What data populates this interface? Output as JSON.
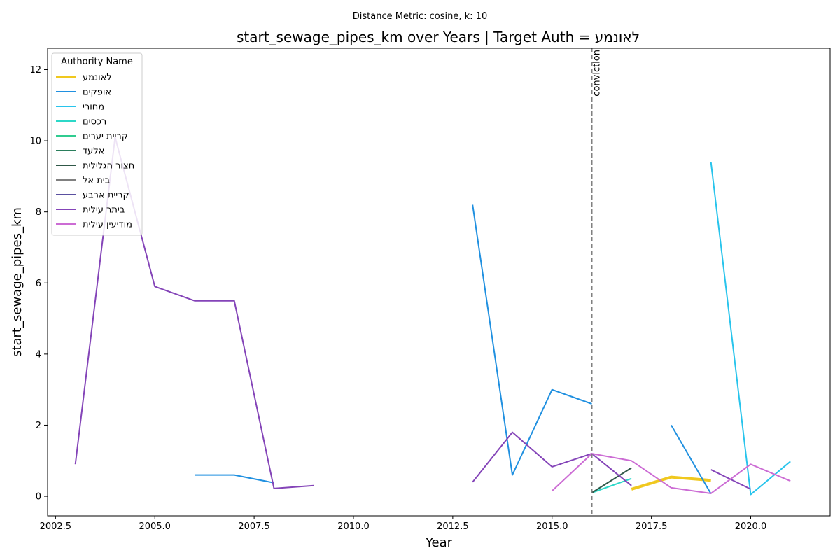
{
  "chart_data": {
    "type": "line",
    "subtitle": "Distance Metric: cosine, k: 10",
    "title": "start_sewage_pipes_km over Years | Target Auth = לאונמע",
    "xlabel": "Year",
    "ylabel": "start_sewage_pipes_km",
    "xlim": [
      2002.3,
      2022.0
    ],
    "ylim": [
      -0.55,
      12.6
    ],
    "x_ticks": [
      2002.5,
      2005.0,
      2007.5,
      2010.0,
      2012.5,
      2015.0,
      2017.5,
      2020.0
    ],
    "x_tick_labels": [
      "2002.5",
      "2005.0",
      "2007.5",
      "2010.0",
      "2012.5",
      "2015.0",
      "2017.5",
      "2020.0"
    ],
    "y_ticks": [
      0,
      2,
      4,
      6,
      8,
      10,
      12
    ],
    "y_tick_labels": [
      "0",
      "2",
      "4",
      "6",
      "8",
      "10",
      "12"
    ],
    "grid": false,
    "legend": {
      "title": "Authority Name",
      "placement": "top-left"
    },
    "annotations": [
      {
        "x": 2016,
        "label": "conviction",
        "style": "dashed-vertical-line",
        "color": "#808080"
      }
    ],
    "series": [
      {
        "name": "לאונמע",
        "color": "#f0c81e",
        "width": 4,
        "x": [
          2017,
          2018,
          2019
        ],
        "y": [
          0.2,
          0.54,
          0.45
        ]
      },
      {
        "name": "אופקים",
        "color": "#2090e0",
        "width": 2,
        "segments": [
          {
            "x": [
              2006,
              2007,
              2008
            ],
            "y": [
              0.6,
              0.6,
              0.38
            ]
          },
          {
            "x": [
              2013,
              2014,
              2015,
              2016
            ],
            "y": [
              8.2,
              0.6,
              3.0,
              2.6
            ]
          },
          {
            "x": [
              2018,
              2019
            ],
            "y": [
              2.0,
              0.07
            ]
          }
        ]
      },
      {
        "name": "מחורי",
        "color": "#28c4ec",
        "width": 2,
        "x": [
          2019,
          2020,
          2021
        ],
        "y": [
          9.4,
          0.05,
          0.98
        ]
      },
      {
        "name": "רכסים",
        "color": "#2cd8c8",
        "width": 2,
        "x": [
          2016,
          2017
        ],
        "y": [
          0.1,
          0.5
        ]
      },
      {
        "name": "קריית יערים",
        "color": "#30cc90",
        "width": 2,
        "x": [],
        "y": []
      },
      {
        "name": "אלעד",
        "color": "#2a7e5c",
        "width": 2,
        "x": [],
        "y": []
      },
      {
        "name": "חצור הגלילית",
        "color": "#305848",
        "width": 2,
        "x": [
          2016,
          2017
        ],
        "y": [
          0.1,
          0.8
        ]
      },
      {
        "name": "בית אל",
        "color": "#808080",
        "width": 2,
        "x": [],
        "y": []
      },
      {
        "name": "קריית ארבע",
        "color": "#5a50a0",
        "width": 2,
        "x": [],
        "y": []
      },
      {
        "name": "ביתר עילית",
        "color": "#8444b8",
        "width": 2,
        "segments": [
          {
            "x": [
              2003,
              2004,
              2005,
              2006,
              2007,
              2008,
              2009
            ],
            "y": [
              0.9,
              10.1,
              5.9,
              5.5,
              5.5,
              0.22,
              0.3
            ]
          },
          {
            "x": [
              2013,
              2014,
              2015,
              2016,
              2017
            ],
            "y": [
              0.4,
              1.8,
              0.83,
              1.2,
              0.3
            ]
          },
          {
            "x": [
              2019,
              2020
            ],
            "y": [
              0.75,
              0.2
            ]
          }
        ]
      },
      {
        "name": "מודיעין עילית",
        "color": "#cc6cd4",
        "width": 2,
        "x": [
          2015,
          2016,
          2017,
          2018,
          2019,
          2020,
          2021
        ],
        "y": [
          0.15,
          1.2,
          1.0,
          0.24,
          0.08,
          0.9,
          0.43
        ]
      }
    ]
  }
}
